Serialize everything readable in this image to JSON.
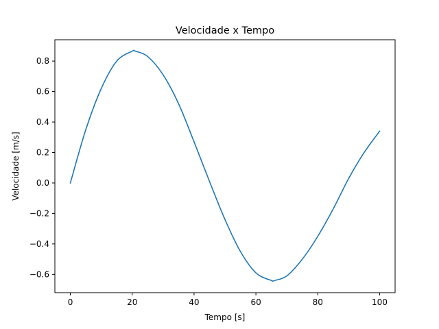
{
  "chart_data": {
    "type": "line",
    "title": "Velocidade x Tempo",
    "xlabel": "Tempo [s]",
    "ylabel": "Velocidade [m/s]",
    "xlim": [
      -5,
      105
    ],
    "ylim": [
      -0.72,
      0.94
    ],
    "xticks": [
      0,
      20,
      40,
      60,
      80,
      100
    ],
    "xtick_labels": [
      "0",
      "20",
      "40",
      "60",
      "80",
      "100"
    ],
    "yticks": [
      -0.6,
      -0.4,
      -0.2,
      0.0,
      0.2,
      0.4,
      0.6,
      0.8
    ],
    "ytick_labels": [
      "−0.6",
      "−0.4",
      "−0.2",
      "0.0",
      "0.2",
      "0.4",
      "0.6",
      "0.8"
    ],
    "grid": false,
    "series": [
      {
        "color": "#1f77b4",
        "x": [
          0,
          5,
          10,
          15,
          20,
          21,
          25,
          30,
          35,
          40,
          45,
          50,
          55,
          60,
          65,
          66,
          70,
          75,
          80,
          85,
          90,
          95,
          100
        ],
        "y": [
          0.0,
          0.35,
          0.62,
          0.8,
          0.865,
          0.865,
          0.83,
          0.71,
          0.52,
          0.27,
          0.01,
          -0.24,
          -0.45,
          -0.59,
          -0.64,
          -0.64,
          -0.61,
          -0.5,
          -0.35,
          -0.17,
          0.03,
          0.2,
          0.34
        ]
      }
    ]
  }
}
